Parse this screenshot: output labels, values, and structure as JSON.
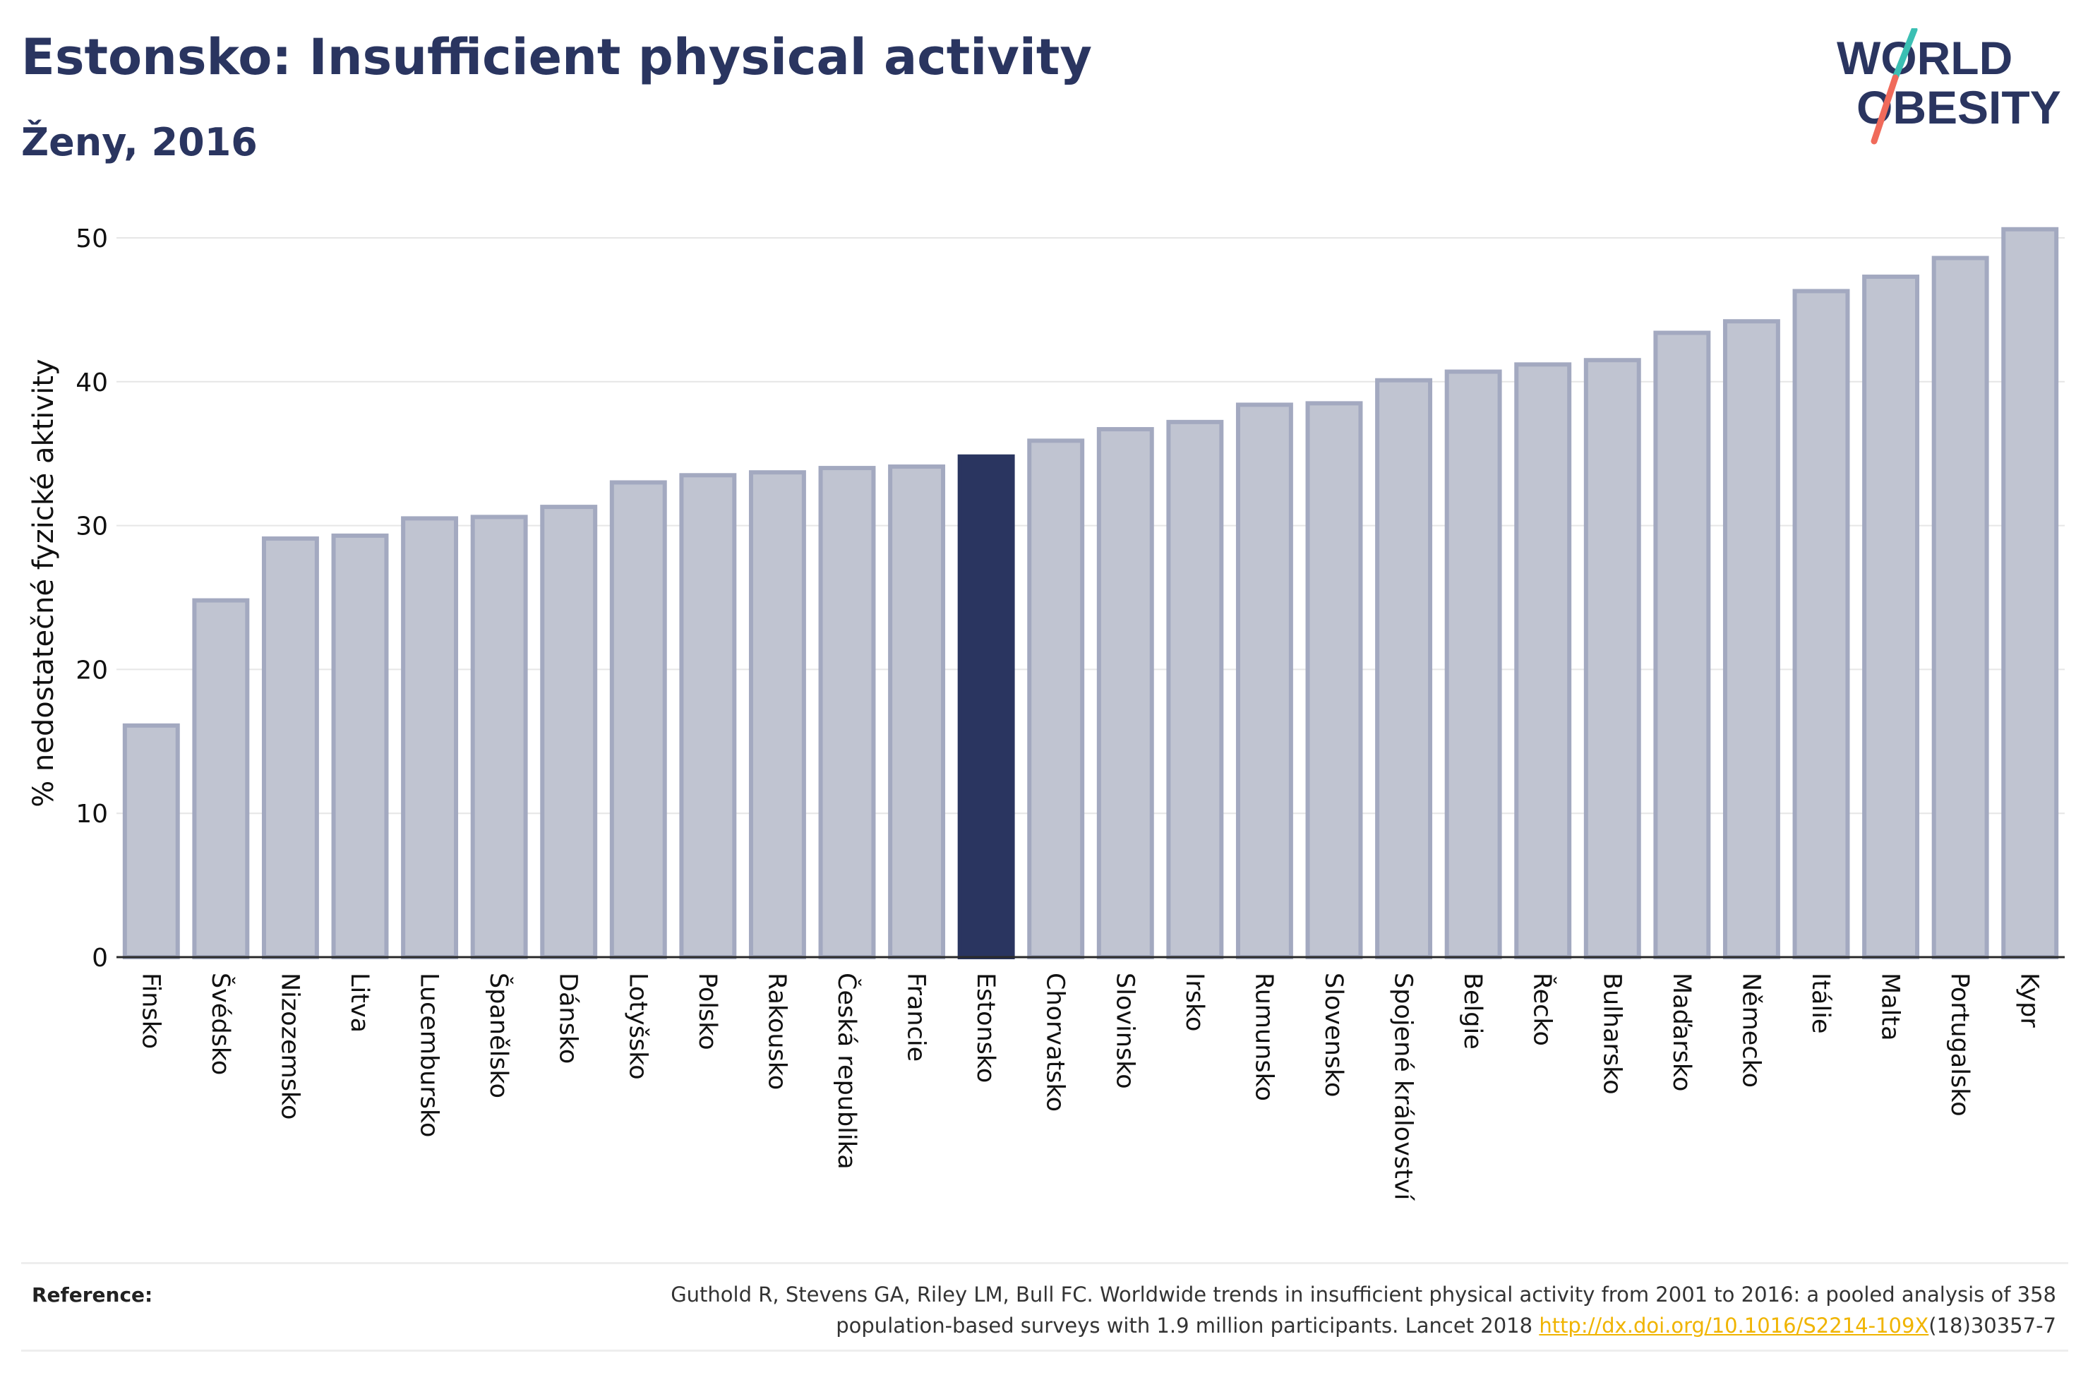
{
  "header": {
    "title": "Estonsko: Insufficient physical activity",
    "subtitle": "Ženy, 2016",
    "logo_line1": "WORLD",
    "logo_line2": "OBESITY"
  },
  "colors": {
    "highlight_bar": "#2a3560",
    "other_bar": "#c0c4d1",
    "other_bar_border": "#a3a9c0",
    "text": "#2a3560",
    "link": "#f0b400"
  },
  "chart_data": {
    "type": "bar",
    "title": "Estonsko: Insufficient physical activity",
    "subtitle": "Ženy, 2016",
    "ylabel": "% nedostatečné fyzické aktivity",
    "xlabel": "",
    "ylim": [
      0,
      52
    ],
    "yticks": [
      0,
      10,
      20,
      30,
      40,
      50
    ],
    "grid": true,
    "highlight": "Estonsko",
    "categories": [
      "Finsko",
      "Švédsko",
      "Nizozemsko",
      "Litva",
      "Lucembursko",
      "Španělsko",
      "Dánsko",
      "Lotyšsko",
      "Polsko",
      "Rakousko",
      "Česká republika",
      "Francie",
      "Estonsko",
      "Chorvatsko",
      "Slovinsko",
      "Irsko",
      "Rumunsko",
      "Slovensko",
      "Spojené království",
      "Belgie",
      "Řecko",
      "Bulharsko",
      "Maďarsko",
      "Německo",
      "Itálie",
      "Malta",
      "Portugalsko",
      "Kypr"
    ],
    "values": [
      16.1,
      24.8,
      29.1,
      29.3,
      30.5,
      30.6,
      31.3,
      33.0,
      33.5,
      33.7,
      34.0,
      34.1,
      34.8,
      35.9,
      36.7,
      37.2,
      38.4,
      38.5,
      40.1,
      40.7,
      41.2,
      41.5,
      43.4,
      44.2,
      46.3,
      47.3,
      48.6,
      50.6
    ]
  },
  "reference": {
    "label": "Reference:",
    "line1": "Guthold R, Stevens GA, Riley LM, Bull FC. Worldwide trends in insufficient physical activity from 2001 to 2016: a pooled analysis of 358",
    "line2_before": "population-based surveys with 1.9 million participants. Lancet 2018 ",
    "link": "http://dx.doi.org/10.1016/S2214-109X",
    "line2_after": "(18)30357-7"
  }
}
